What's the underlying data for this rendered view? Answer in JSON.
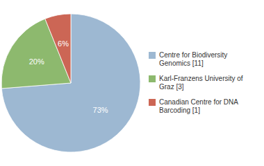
{
  "chart_data": {
    "type": "pie",
    "categories": [
      "Centre for Biodiversity\nGenomics [11]",
      "Karl-Franzens University of\nGraz [3]",
      "Canadian Centre for DNA\nBarcoding [1]"
    ],
    "values": [
      73,
      20,
      6
    ],
    "value_labels": [
      "73%",
      "20%",
      "6%"
    ],
    "colors": [
      "#9db8d2",
      "#8db96e",
      "#cc6655"
    ],
    "data_labels": true,
    "legend": "right"
  }
}
